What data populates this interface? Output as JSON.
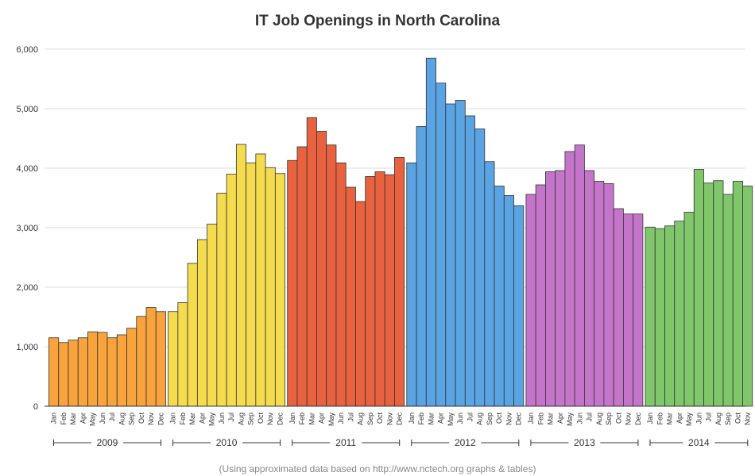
{
  "chart_data": {
    "type": "bar",
    "title": "IT Job Openings in North Carolina",
    "footnote": "(Using approximated data based on http://www.nctech.org graphs & tables)",
    "xlabel": "",
    "ylabel": "",
    "ylim": [
      0,
      6000
    ],
    "yticks": [
      "0",
      "1,000",
      "2,000",
      "3,000",
      "4,000",
      "5,000",
      "6,000"
    ],
    "grid": true,
    "groups": [
      {
        "name": "2009",
        "color": "#f8a33b",
        "months": [
          "Jan",
          "Feb",
          "Mar",
          "Apr",
          "May",
          "Jun",
          "Jul",
          "Aug",
          "Sep",
          "Oct",
          "Nov",
          "Dec"
        ],
        "values": [
          1150,
          1070,
          1110,
          1150,
          1250,
          1240,
          1150,
          1200,
          1310,
          1510,
          1660,
          1590
        ]
      },
      {
        "name": "2010",
        "color": "#f5dc4e",
        "months": [
          "Jan",
          "Feb",
          "Mar",
          "Apr",
          "May",
          "Jun",
          "Jul",
          "Aug",
          "Sep",
          "Oct",
          "Nov",
          "Dec"
        ],
        "values": [
          1590,
          1740,
          2400,
          2800,
          3060,
          3580,
          3900,
          4400,
          4090,
          4240,
          4010,
          3910
        ]
      },
      {
        "name": "2011",
        "color": "#e8623f",
        "months": [
          "Jan",
          "Feb",
          "Mar",
          "Apr",
          "May",
          "Jun",
          "Jul",
          "Aug",
          "Sep",
          "Oct",
          "Nov",
          "Dec"
        ],
        "values": [
          4130,
          4360,
          4850,
          4620,
          4390,
          4090,
          3680,
          3440,
          3860,
          3940,
          3890,
          4180
        ]
      },
      {
        "name": "2012",
        "color": "#5aa4e3",
        "months": [
          "Jan",
          "Feb",
          "Mar",
          "Apr",
          "May",
          "Jun",
          "Jul",
          "Aug",
          "Sep",
          "Oct",
          "Nov",
          "Dec"
        ],
        "values": [
          4090,
          4700,
          5850,
          5430,
          5080,
          5140,
          4880,
          4660,
          4110,
          3700,
          3540,
          3370
        ]
      },
      {
        "name": "2013",
        "color": "#c575c9",
        "months": [
          "Jan",
          "Feb",
          "Mar",
          "Apr",
          "May",
          "Jun",
          "Jul",
          "Aug",
          "Sep",
          "Oct",
          "Nov",
          "Dec"
        ],
        "values": [
          3560,
          3720,
          3940,
          3960,
          4280,
          4390,
          3960,
          3780,
          3740,
          3320,
          3230,
          3230
        ]
      },
      {
        "name": "2014",
        "color": "#7fc76a",
        "months": [
          "Jan",
          "Feb",
          "Mar",
          "Apr",
          "May",
          "Jun",
          "Jul",
          "Aug",
          "Sep",
          "Oct",
          "Nov"
        ],
        "values": [
          3010,
          2980,
          3030,
          3110,
          3260,
          3980,
          3750,
          3790,
          3560,
          3780,
          3700
        ]
      }
    ]
  }
}
